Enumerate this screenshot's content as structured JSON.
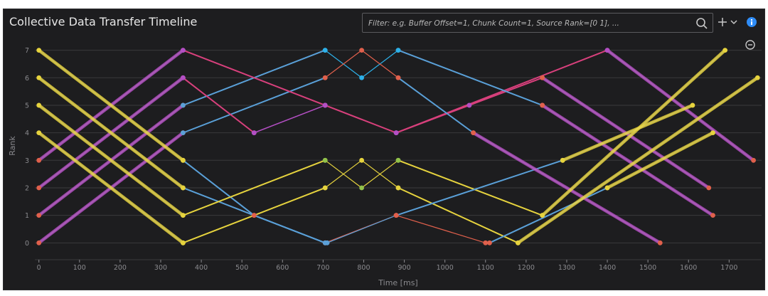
{
  "header": {
    "title": "Collective Data Transfer Timeline",
    "filter_placeholder": "Filter: e.g. Buffer Offset=1, Chunk Count=1, Source Rank=[0 1], ..."
  },
  "colors": {
    "background": "#1d1d1f",
    "grid": "#3a3a3c",
    "axis_text": "#8a8a8e",
    "accent_blue": "#2f8cf6",
    "purple": "#b44fc4",
    "magenta": "#d8407c",
    "yellow": "#e6d33e",
    "blue": "#5aa0d8",
    "green": "#92c24a",
    "red": "#e0604c"
  },
  "chart_data": {
    "type": "line",
    "title": "Collective Data Transfer Timeline",
    "xlabel": "Time [ms]",
    "ylabel": "Rank",
    "xlim": [
      -10,
      1780
    ],
    "ylim": [
      -0.25,
      7.3
    ],
    "xticks": [
      0,
      100,
      200,
      300,
      400,
      500,
      600,
      700,
      800,
      900,
      1000,
      1100,
      1200,
      1300,
      1400,
      1500,
      1600,
      1700
    ],
    "yticks": [
      0,
      1,
      2,
      3,
      4,
      5,
      6,
      7
    ],
    "grid": "horizontal",
    "series": [
      {
        "color": "#b44fc4",
        "width": 4.5,
        "points": [
          [
            0,
            0
          ],
          [
            355,
            4
          ]
        ],
        "marker_colors": [
          "#e0604c",
          "#e0604c"
        ]
      },
      {
        "color": "#b44fc4",
        "width": 4.5,
        "points": [
          [
            0,
            1
          ],
          [
            355,
            5
          ]
        ],
        "marker_colors": [
          "#e0604c",
          "#e0604c"
        ]
      },
      {
        "color": "#b44fc4",
        "width": 4.5,
        "points": [
          [
            0,
            2
          ],
          [
            355,
            6
          ]
        ],
        "marker_colors": [
          "#e0604c",
          "#b44fc4"
        ]
      },
      {
        "color": "#b44fc4",
        "width": 4.5,
        "points": [
          [
            0,
            3
          ],
          [
            355,
            7
          ]
        ],
        "marker_colors": [
          "#e0604c",
          "#b44fc4"
        ]
      },
      {
        "color": "#e6d33e",
        "width": 4.5,
        "points": [
          [
            0,
            7
          ],
          [
            355,
            3
          ]
        ],
        "marker_colors": [
          "#e6d33e",
          "#e6d33e"
        ]
      },
      {
        "color": "#e6d33e",
        "width": 4.5,
        "points": [
          [
            0,
            6
          ],
          [
            355,
            2
          ]
        ],
        "marker_colors": [
          "#e6d33e",
          "#e6d33e"
        ]
      },
      {
        "color": "#e6d33e",
        "width": 4.5,
        "points": [
          [
            0,
            5
          ],
          [
            355,
            1
          ]
        ],
        "marker_colors": [
          "#e6d33e",
          "#e6d33e"
        ]
      },
      {
        "color": "#e6d33e",
        "width": 4.5,
        "points": [
          [
            0,
            4
          ],
          [
            355,
            0
          ]
        ],
        "marker_colors": [
          "#e6d33e",
          "#e6d33e"
        ]
      },
      {
        "color": "#5aa0d8",
        "width": 2,
        "points": [
          [
            355,
            5
          ],
          [
            705,
            7
          ]
        ],
        "marker_colors": [
          "#5aa0d8",
          "#2db0e8"
        ]
      },
      {
        "color": "#5aa0d8",
        "width": 2,
        "points": [
          [
            355,
            4
          ],
          [
            705,
            6
          ]
        ],
        "marker_colors": [
          "#5aa0d8",
          "#e0604c"
        ]
      },
      {
        "color": "#5aa0d8",
        "width": 2,
        "points": [
          [
            355,
            3
          ],
          [
            530,
            1
          ],
          [
            705,
            0
          ]
        ],
        "marker_colors": [
          "#e6d33e",
          "#e0604c",
          "#e0604c"
        ]
      },
      {
        "color": "#5aa0d8",
        "width": 2,
        "points": [
          [
            355,
            2
          ],
          [
            530,
            1
          ],
          [
            705,
            0
          ]
        ],
        "marker_colors": [
          "#e6d33e",
          "#e0604c",
          "#e0604c"
        ]
      },
      {
        "color": "#d8407c",
        "width": 2,
        "points": [
          [
            355,
            6
          ],
          [
            530,
            4
          ]
        ],
        "marker_colors": [
          "#b44fc4",
          "#b44fc4"
        ]
      },
      {
        "color": "#d8407c",
        "width": 2,
        "points": [
          [
            355,
            7
          ],
          [
            705,
            5
          ]
        ],
        "marker_colors": [
          "#b44fc4",
          "#b44fc4"
        ]
      },
      {
        "color": "#b44fc4",
        "width": 1.5,
        "points": [
          [
            530,
            4
          ],
          [
            705,
            5
          ]
        ],
        "marker_colors": [
          "#b44fc4",
          "#b44fc4"
        ]
      },
      {
        "color": "#e6d33e",
        "width": 2,
        "points": [
          [
            355,
            1
          ],
          [
            705,
            3
          ]
        ],
        "marker_colors": [
          "#e6d33e",
          "#92c24a"
        ]
      },
      {
        "color": "#e6d33e",
        "width": 2,
        "points": [
          [
            355,
            0
          ],
          [
            530,
            1
          ],
          [
            705,
            2
          ]
        ],
        "marker_colors": [
          "#e6d33e",
          "#e0604c",
          "#e6d33e"
        ]
      },
      {
        "color": "#2db0e8",
        "width": 1.2,
        "points": [
          [
            705,
            7
          ],
          [
            795,
            6
          ],
          [
            885,
            7
          ]
        ],
        "marker_colors": [
          "#2db0e8",
          "#2db0e8",
          "#2db0e8"
        ]
      },
      {
        "color": "#e0604c",
        "width": 1.2,
        "points": [
          [
            705,
            6
          ],
          [
            795,
            7
          ],
          [
            885,
            6
          ]
        ],
        "marker_colors": [
          "#e0604c",
          "#e0604c",
          "#e0604c"
        ]
      },
      {
        "color": "#e6d33e",
        "width": 1.2,
        "points": [
          [
            705,
            3
          ],
          [
            795,
            2
          ],
          [
            885,
            3
          ]
        ],
        "marker_colors": [
          "#92c24a",
          "#92c24a",
          "#92c24a"
        ]
      },
      {
        "color": "#e6d33e",
        "width": 1.2,
        "points": [
          [
            705,
            2
          ],
          [
            795,
            3
          ],
          [
            885,
            2
          ]
        ],
        "marker_colors": [
          "#e6d33e",
          "#e6d33e",
          "#e6d33e"
        ]
      },
      {
        "color": "#e0604c",
        "width": 1.2,
        "points": [
          [
            705,
            0
          ],
          [
            880,
            1
          ]
        ],
        "marker_colors": [
          "#5aa0d8",
          "#e0604c"
        ]
      },
      {
        "color": "#5aa0d8",
        "width": 1.2,
        "points": [
          [
            710,
            0
          ],
          [
            880,
            1
          ]
        ],
        "marker_colors": [
          "#5aa0d8",
          "#e0604c"
        ]
      },
      {
        "color": "#d8407c",
        "width": 2,
        "points": [
          [
            705,
            5
          ],
          [
            880,
            4
          ]
        ],
        "marker_colors": [
          "#b44fc4",
          "#b44fc4"
        ]
      },
      {
        "color": "#d8407c",
        "width": 2,
        "points": [
          [
            880,
            4
          ],
          [
            1060,
            5
          ],
          [
            1240,
            6
          ]
        ],
        "marker_colors": [
          "#b44fc4",
          "#b44fc4",
          "#e0604c"
        ]
      },
      {
        "color": "#d8407c",
        "width": 2,
        "points": [
          [
            880,
            4
          ],
          [
            1400,
            7
          ]
        ],
        "marker_colors": [
          "#b44fc4",
          "#b44fc4"
        ]
      },
      {
        "color": "#5aa0d8",
        "width": 2,
        "points": [
          [
            885,
            7
          ],
          [
            1240,
            5
          ]
        ],
        "marker_colors": [
          "#2db0e8",
          "#e0604c"
        ]
      },
      {
        "color": "#5aa0d8",
        "width": 2,
        "points": [
          [
            885,
            6
          ],
          [
            1070,
            4
          ]
        ],
        "marker_colors": [
          "#e0604c",
          "#e0604c"
        ]
      },
      {
        "color": "#e6d33e",
        "width": 2,
        "points": [
          [
            885,
            3
          ],
          [
            1240,
            1
          ]
        ],
        "marker_colors": [
          "#92c24a",
          "#e6d33e"
        ]
      },
      {
        "color": "#e6d33e",
        "width": 2,
        "points": [
          [
            885,
            2
          ],
          [
            1180,
            0
          ]
        ],
        "marker_colors": [
          "#e6d33e",
          "#e6d33e"
        ]
      },
      {
        "color": "#e0604c",
        "width": 1.2,
        "points": [
          [
            880,
            1
          ],
          [
            1100,
            0
          ]
        ],
        "marker_colors": [
          "#e0604c",
          "#e0604c"
        ]
      },
      {
        "color": "#5aa0d8",
        "width": 2,
        "points": [
          [
            880,
            1
          ],
          [
            1290,
            3
          ]
        ],
        "marker_colors": [
          "#e0604c",
          "#e6d33e"
        ]
      },
      {
        "color": "#5aa0d8",
        "width": 2,
        "points": [
          [
            1110,
            0
          ],
          [
            1400,
            2
          ]
        ],
        "marker_colors": [
          "#e0604c",
          "#e6d33e"
        ]
      },
      {
        "color": "#b44fc4",
        "width": 4.5,
        "points": [
          [
            1240,
            6
          ],
          [
            1650,
            2
          ]
        ],
        "marker_colors": [
          "#e0604c",
          "#e0604c"
        ]
      },
      {
        "color": "#b44fc4",
        "width": 4.5,
        "points": [
          [
            1240,
            5
          ],
          [
            1660,
            1
          ]
        ],
        "marker_colors": [
          "#e0604c",
          "#e0604c"
        ]
      },
      {
        "color": "#b44fc4",
        "width": 4.5,
        "points": [
          [
            1070,
            4
          ],
          [
            1530,
            0
          ]
        ],
        "marker_colors": [
          "#e0604c",
          "#e0604c"
        ]
      },
      {
        "color": "#b44fc4",
        "width": 4.5,
        "points": [
          [
            1400,
            7
          ],
          [
            1760,
            3
          ]
        ],
        "marker_colors": [
          "#b44fc4",
          "#e0604c"
        ]
      },
      {
        "color": "#e6d33e",
        "width": 4.5,
        "points": [
          [
            1240,
            1
          ],
          [
            1690,
            7
          ]
        ],
        "marker_colors": [
          "#e6d33e",
          "#e6d33e"
        ]
      },
      {
        "color": "#e6d33e",
        "width": 4.5,
        "points": [
          [
            1180,
            0
          ],
          [
            1770,
            6
          ]
        ],
        "marker_colors": [
          "#e6d33e",
          "#e6d33e"
        ]
      },
      {
        "color": "#e6d33e",
        "width": 4.5,
        "points": [
          [
            1290,
            3
          ],
          [
            1610,
            5
          ]
        ],
        "marker_colors": [
          "#e6d33e",
          "#e6d33e"
        ]
      },
      {
        "color": "#e6d33e",
        "width": 4.5,
        "points": [
          [
            1400,
            2
          ],
          [
            1660,
            4
          ]
        ],
        "marker_colors": [
          "#e6d33e",
          "#e6d33e"
        ]
      }
    ]
  }
}
